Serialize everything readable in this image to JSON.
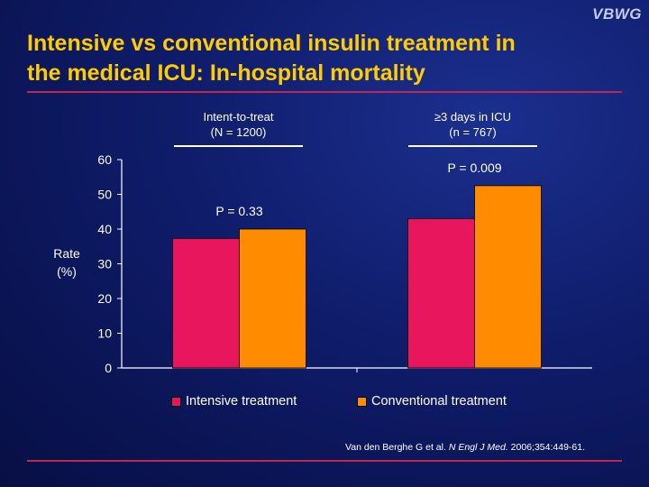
{
  "slide": {
    "logo": "VBWG",
    "title_line1": "Intensive vs conventional insulin treatment in",
    "title_line2": "the medical ICU: In-hospital mortality",
    "citation_authors": "Van den Berghe G et al. ",
    "citation_journal": "N Engl J Med.",
    "citation_ref": " 2006;354:449-61."
  },
  "groups": [
    {
      "line1": "Intent-to-treat",
      "line2": "(N = 1200)"
    },
    {
      "line1": "≥3 days in ICU",
      "line2": "(n = 767)"
    }
  ],
  "chart_data": {
    "type": "bar",
    "title": "Intensive vs conventional insulin treatment in the medical ICU: In-hospital mortality",
    "xlabel": "",
    "ylabel_line1": "Rate",
    "ylabel_line2": "(%)",
    "categories": [
      "Intent-to-treat (N = 1200)",
      "≥3 days in ICU (n = 767)"
    ],
    "series": [
      {
        "name": "Intensive treatment",
        "color": "#e8175d",
        "values": [
          37.3,
          43.0
        ]
      },
      {
        "name": "Conventional treatment",
        "color": "#ff8c00",
        "values": [
          40.0,
          52.5
        ]
      }
    ],
    "annotations": [
      "P = 0.33",
      "P = 0.009"
    ],
    "ylim": [
      0,
      60
    ],
    "yticks": [
      0,
      10,
      20,
      30,
      40,
      50,
      60
    ],
    "grid": false,
    "legend_position": "bottom"
  }
}
